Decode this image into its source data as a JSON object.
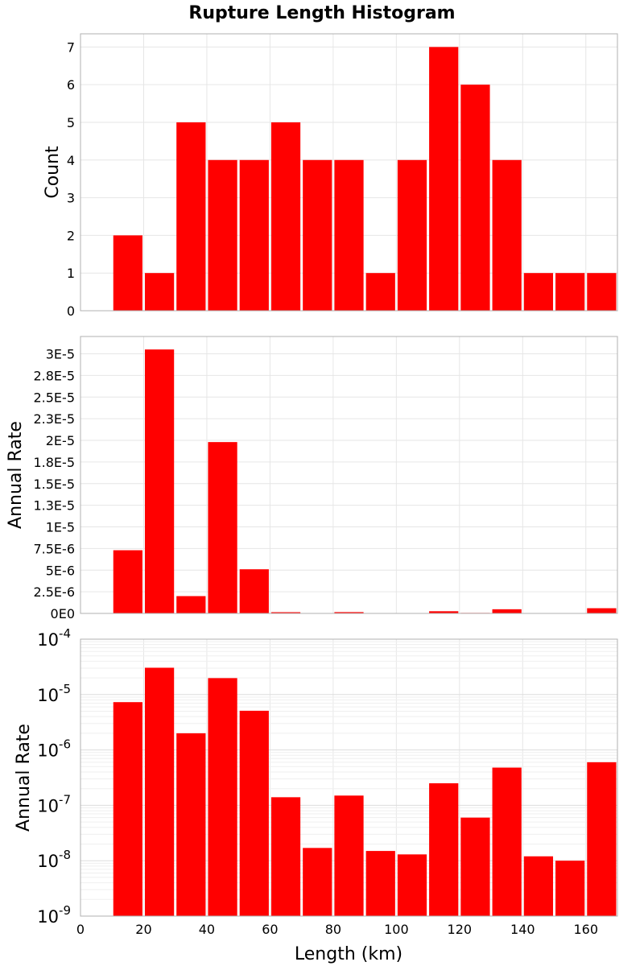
{
  "chart_data": {
    "type": "bar",
    "title": "Rupture Length Histogram",
    "xlabel": "Length (km)",
    "xlim": [
      0,
      170
    ],
    "x_ticks": [
      0,
      20,
      40,
      60,
      80,
      100,
      120,
      140,
      160
    ],
    "bin_width": 10,
    "categories": [
      15,
      25,
      35,
      45,
      55,
      65,
      75,
      85,
      95,
      105,
      115,
      125,
      135,
      145,
      155,
      165
    ],
    "bar_color": "#ff0000",
    "panels": [
      {
        "ylabel": "Count",
        "yscale": "linear",
        "ylim": [
          0,
          7.35
        ],
        "y_ticks": [
          0,
          1,
          2,
          3,
          4,
          5,
          6,
          7
        ],
        "y_tick_labels": [
          "0",
          "1",
          "2",
          "3",
          "4",
          "5",
          "6",
          "7"
        ],
        "values": [
          2,
          1,
          5,
          4,
          4,
          5,
          4,
          4,
          1,
          4,
          7,
          6,
          4,
          1,
          1,
          1
        ]
      },
      {
        "ylabel": "Annual Rate",
        "yscale": "linear",
        "ylim": [
          0,
          3.2e-05
        ],
        "y_ticks": [
          0,
          2.5e-06,
          5e-06,
          7.5e-06,
          1e-05,
          1.25e-05,
          1.5e-05,
          1.75e-05,
          2e-05,
          2.25e-05,
          2.5e-05,
          2.75e-05,
          3e-05
        ],
        "y_tick_labels": [
          "0E0",
          "2.5E-6",
          "5E-6",
          "7.5E-6",
          "1E-5",
          "1.3E-5",
          "1.5E-5",
          "1.8E-5",
          "2E-5",
          "2.3E-5",
          "2.5E-5",
          "2.8E-5",
          "3E-5"
        ],
        "values": [
          7.3e-06,
          3.05e-05,
          2e-06,
          1.98e-05,
          5.1e-06,
          1.4e-07,
          1.7e-08,
          1.5e-07,
          1.5e-08,
          1.3e-08,
          2.5e-07,
          6e-08,
          4.8e-07,
          1.2e-08,
          1e-08,
          6e-07
        ]
      },
      {
        "ylabel": "Annual Rate",
        "yscale": "log",
        "ylim_exp": [
          -9,
          -4
        ],
        "y_tick_exps": [
          -9,
          -8,
          -7,
          -6,
          -5,
          -4
        ],
        "y_tick_base": "10",
        "y_tick_exp_labels": [
          "-9",
          "-8",
          "-7",
          "-6",
          "-5",
          "-4"
        ],
        "values": [
          7.3e-06,
          3.05e-05,
          2e-06,
          1.98e-05,
          5.1e-06,
          1.4e-07,
          1.7e-08,
          1.5e-07,
          1.5e-08,
          1.3e-08,
          2.5e-07,
          6e-08,
          4.8e-07,
          1.2e-08,
          1e-08,
          6e-07
        ]
      }
    ]
  }
}
